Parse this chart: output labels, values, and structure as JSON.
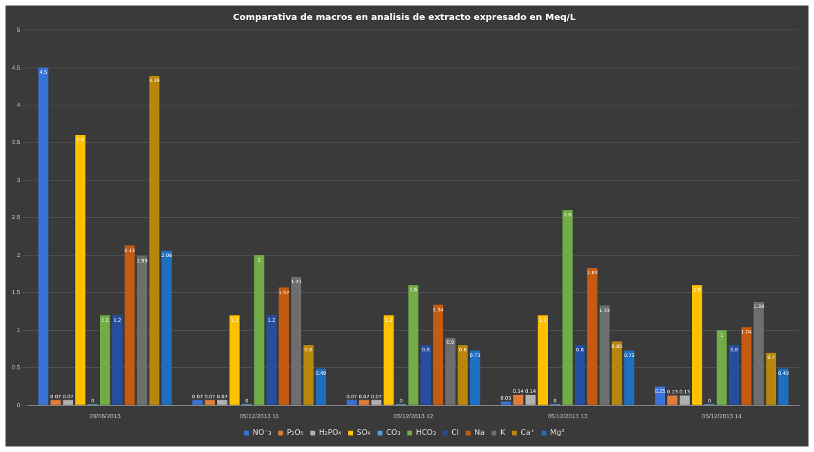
{
  "chart_data": {
    "type": "bar",
    "title": "Comparativa de macros en analisis de extracto expresado en Meq/L",
    "categories": [
      "29/06/2013",
      "05/12/2013 11",
      "05/12/2013 12",
      "05/12/2013 13",
      "05/12/2013 14"
    ],
    "series": [
      {
        "name": "NO⁻₃",
        "color": "#3a73d6",
        "values": [
          4.5,
          0.07,
          0.07,
          0.05,
          0.25
        ]
      },
      {
        "name": "P₂O₅",
        "color": "#e07b39",
        "values": [
          0.07,
          0.07,
          0.07,
          0.14,
          0.13
        ]
      },
      {
        "name": "H₂PO₄",
        "color": "#b0b0b0",
        "values": [
          0.07,
          0.07,
          0.07,
          0.14,
          0.13
        ]
      },
      {
        "name": "SO₄",
        "color": "#ffc000",
        "values": [
          3.6,
          1.2,
          1.2,
          1.2,
          1.6
        ]
      },
      {
        "name": "CO₃",
        "color": "#5b9bd5",
        "values": [
          0,
          0,
          0,
          0,
          0
        ]
      },
      {
        "name": "HCO₃",
        "color": "#70ad47",
        "values": [
          1.2,
          2,
          1.6,
          2.6,
          1
        ]
      },
      {
        "name": "Cl",
        "color": "#264ea0",
        "values": [
          1.2,
          1.2,
          0.8,
          0.8,
          0.8
        ]
      },
      {
        "name": "Na",
        "color": "#c55a11",
        "values": [
          2.13,
          1.57,
          1.34,
          1.83,
          1.04
        ]
      },
      {
        "name": "K",
        "color": "#6e6e6e",
        "values": [
          1.99,
          1.71,
          0.9,
          1.33,
          1.38
        ]
      },
      {
        "name": "Ca⁺",
        "color": "#b8860b",
        "values": [
          4.39,
          0.8,
          0.8,
          0.85,
          0.7
        ]
      },
      {
        "name": "Mg²",
        "color": "#1f6fc0",
        "values": [
          2.06,
          0.49,
          0.73,
          0.73,
          0.49
        ]
      }
    ],
    "ylim": [
      0,
      5
    ],
    "yticks": [
      0,
      0.5,
      1,
      1.5,
      2,
      2.5,
      3,
      3.5,
      4,
      4.5,
      5
    ],
    "grid": "y",
    "legend": "bottom",
    "data_labels": true
  }
}
